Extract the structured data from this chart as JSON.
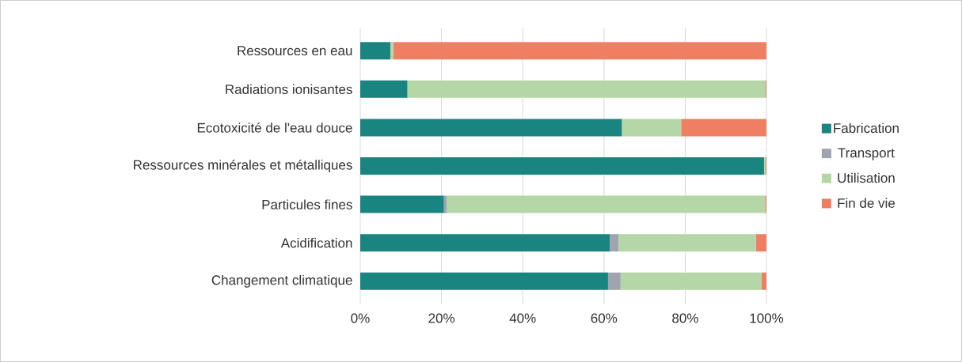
{
  "chart_data": {
    "type": "bar",
    "orientation": "horizontal",
    "stacked": true,
    "categories": [
      "Ressources en eau",
      "Radiations ionisantes",
      "Ecotoxicité de l'eau douce",
      "Ressources minérales et métalliques",
      "Particules fines",
      "Acidification",
      "Changement climatique"
    ],
    "series": [
      {
        "name": "Fabrication",
        "color": "#1a8580",
        "values": [
          7.4,
          11.6,
          64.4,
          99.4,
          20.6,
          61.4,
          61.0
        ]
      },
      {
        "name": "Transport",
        "color": "#a0a4ae",
        "values": [
          0,
          0,
          0,
          0,
          0.7,
          2.2,
          3.1
        ]
      },
      {
        "name": "Utilisation",
        "color": "#b5d6a7",
        "values": [
          0.7,
          88.2,
          14.6,
          0.4,
          78.4,
          33.8,
          34.7
        ]
      },
      {
        "name": "Fin de vie",
        "color": "#ef7f63",
        "values": [
          91.9,
          0.2,
          21.0,
          0.2,
          0.3,
          2.6,
          1.2
        ]
      }
    ],
    "xlim": [
      0,
      100
    ],
    "xticks": [
      {
        "value": 0,
        "label": "0%"
      },
      {
        "value": 20,
        "label": "20%"
      },
      {
        "value": 40,
        "label": "40%"
      },
      {
        "value": 60,
        "label": "60%"
      },
      {
        "value": 80,
        "label": "80%"
      },
      {
        "value": 100,
        "label": "100%"
      }
    ],
    "grid": "x",
    "legend": "right"
  }
}
